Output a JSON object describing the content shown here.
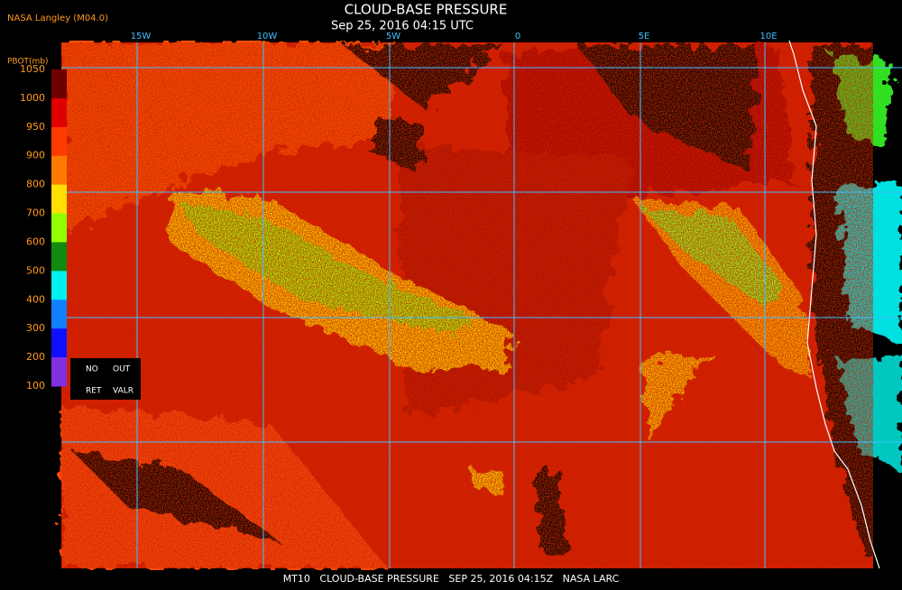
{
  "header": {
    "agency": "NASA Langley (M04.0)",
    "title": "CLOUD-BASE PRESSURE",
    "datetime": "Sep 25, 2016 04:15 UTC"
  },
  "map": {
    "longitude_labels": [
      "15W",
      "10W",
      "5W",
      "0",
      "5E",
      "10E"
    ]
  },
  "legend": {
    "unit": "PBOT(mb)",
    "ticks": [
      "1050",
      "1000",
      "950",
      "900",
      "800",
      "700",
      "600",
      "500",
      "400",
      "300",
      "200",
      "100"
    ],
    "colors": [
      "#6e0000",
      "#e00000",
      "#ff3a00",
      "#ff7a00",
      "#ffe000",
      "#90ff00",
      "#108a10",
      "#00f0f0",
      "#1080ff",
      "#1010ff",
      "#8030e0"
    ],
    "status_labels": [
      "NO",
      "OUT",
      "RET",
      "VALR"
    ]
  },
  "footer": {
    "text": "MT10   CLOUD-BASE PRESSURE   SEP 25, 2016 04:15Z   NASA LARC"
  }
}
